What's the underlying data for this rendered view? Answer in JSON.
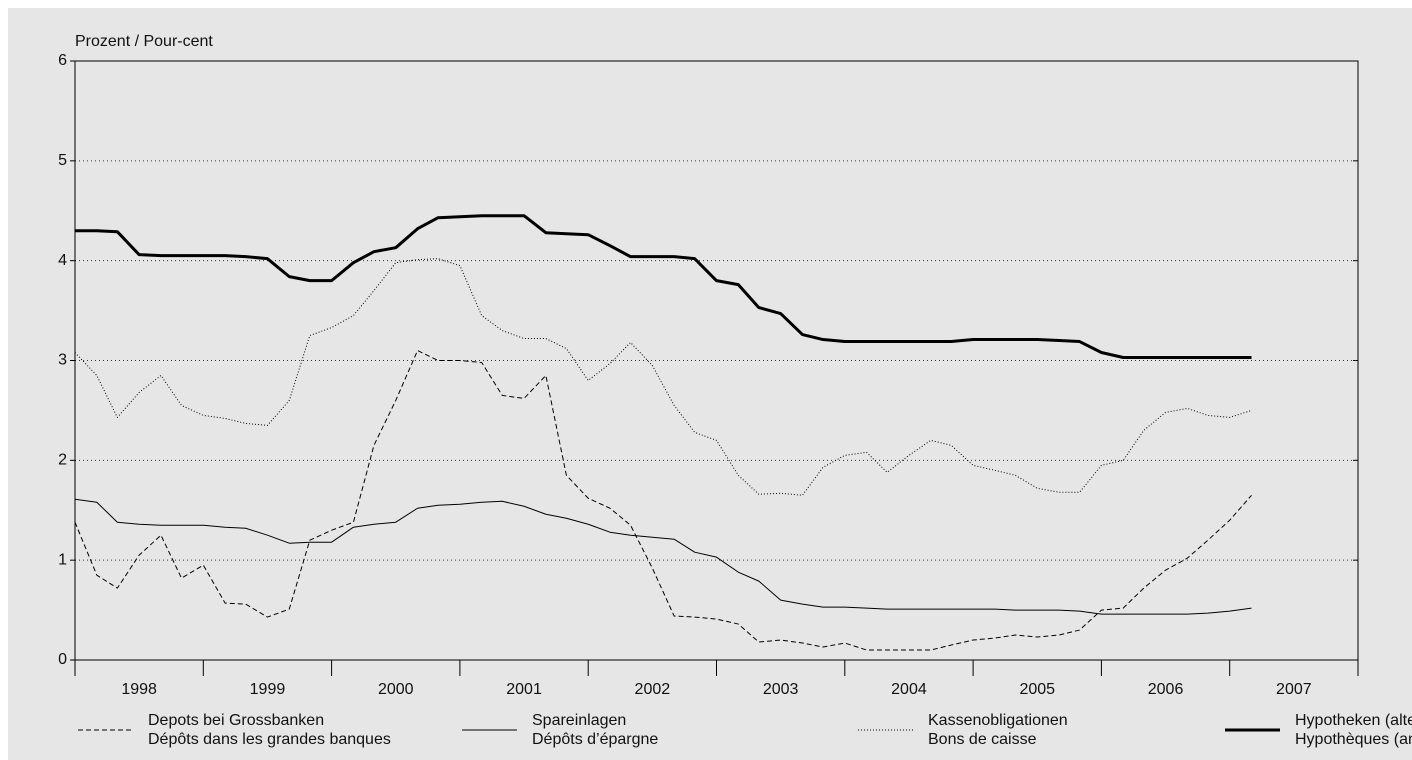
{
  "chart_data": {
    "type": "line",
    "ylabel": "Prozent / Pour-cent",
    "x": [
      1998,
      1998.17,
      1998.33,
      1998.5,
      1998.67,
      1998.83,
      1999,
      1999.17,
      1999.33,
      1999.5,
      1999.67,
      1999.83,
      2000,
      2000.17,
      2000.33,
      2000.5,
      2000.67,
      2000.83,
      2001,
      2001.17,
      2001.33,
      2001.5,
      2001.67,
      2001.83,
      2002,
      2002.17,
      2002.33,
      2002.5,
      2002.67,
      2002.83,
      2003,
      2003.17,
      2003.33,
      2003.5,
      2003.67,
      2003.83,
      2004,
      2004.17,
      2004.33,
      2004.5,
      2004.67,
      2004.83,
      2005,
      2005.17,
      2005.33,
      2005.5,
      2005.67,
      2005.83,
      2006,
      2006.17,
      2006.33,
      2006.5,
      2006.67,
      2006.83,
      2007,
      2007.17
    ],
    "series": [
      {
        "name": [
          "Depots bei Grossbanken",
          "Dépôts dans les grandes banques"
        ],
        "color": "#000000",
        "style": "dashed",
        "width": 1,
        "values": [
          1.38,
          0.85,
          0.72,
          1.05,
          1.25,
          0.82,
          0.95,
          0.57,
          0.56,
          0.43,
          0.51,
          1.2,
          1.3,
          1.38,
          2.15,
          2.6,
          3.1,
          3.0,
          3.0,
          2.98,
          2.65,
          2.62,
          2.85,
          1.85,
          1.62,
          1.52,
          1.35,
          0.92,
          0.44,
          0.43,
          0.41,
          0.36,
          0.18,
          0.2,
          0.17,
          0.13,
          0.17,
          0.1,
          0.1,
          0.1,
          0.1,
          0.15,
          0.2,
          0.22,
          0.25,
          0.23,
          0.25,
          0.3,
          0.5,
          0.52,
          0.72,
          0.9,
          1.02,
          1.2,
          1.4,
          1.65
        ]
      },
      {
        "name": [
          "Spareinlagen",
          "Dépôts d’épargne"
        ],
        "color": "#000000",
        "style": "solid",
        "width": 1,
        "values": [
          1.61,
          1.58,
          1.38,
          1.36,
          1.35,
          1.35,
          1.35,
          1.33,
          1.32,
          1.25,
          1.17,
          1.18,
          1.18,
          1.33,
          1.36,
          1.38,
          1.52,
          1.55,
          1.56,
          1.58,
          1.59,
          1.54,
          1.46,
          1.42,
          1.36,
          1.28,
          1.25,
          1.23,
          1.21,
          1.08,
          1.03,
          0.88,
          0.79,
          0.6,
          0.56,
          0.53,
          0.53,
          0.52,
          0.51,
          0.51,
          0.51,
          0.51,
          0.51,
          0.51,
          0.5,
          0.5,
          0.5,
          0.49,
          0.46,
          0.46,
          0.46,
          0.46,
          0.46,
          0.47,
          0.49,
          0.52
        ]
      },
      {
        "name": [
          "Kassenobligationen",
          "Bons de caisse"
        ],
        "color": "#000000",
        "style": "dotted",
        "width": 1,
        "values": [
          3.08,
          2.85,
          2.43,
          2.68,
          2.85,
          2.55,
          2.45,
          2.42,
          2.37,
          2.35,
          2.6,
          3.25,
          3.33,
          3.45,
          3.7,
          3.98,
          4.01,
          4.02,
          3.95,
          3.45,
          3.3,
          3.22,
          3.22,
          3.12,
          2.8,
          2.97,
          3.18,
          2.95,
          2.55,
          2.28,
          2.2,
          1.85,
          1.66,
          1.67,
          1.65,
          1.93,
          2.05,
          2.08,
          1.88,
          2.05,
          2.2,
          2.15,
          1.95,
          1.9,
          1.85,
          1.72,
          1.68,
          1.68,
          1.95,
          2.0,
          2.3,
          2.48,
          2.52,
          2.45,
          2.43,
          2.5
        ]
      },
      {
        "name": [
          "Hypotheken (alte)",
          "Hypothèques (anciennes)"
        ],
        "color": "#000000",
        "style": "solid",
        "width": 3,
        "values": [
          4.3,
          4.3,
          4.29,
          4.06,
          4.05,
          4.05,
          4.05,
          4.05,
          4.04,
          4.02,
          3.84,
          3.8,
          3.8,
          3.98,
          4.09,
          4.13,
          4.32,
          4.43,
          4.44,
          4.45,
          4.45,
          4.45,
          4.28,
          4.27,
          4.26,
          4.15,
          4.04,
          4.04,
          4.04,
          4.02,
          3.8,
          3.76,
          3.53,
          3.47,
          3.26,
          3.21,
          3.19,
          3.19,
          3.19,
          3.19,
          3.19,
          3.19,
          3.21,
          3.21,
          3.21,
          3.21,
          3.2,
          3.19,
          3.08,
          3.03,
          3.03,
          3.03,
          3.03,
          3.03,
          3.03,
          3.03
        ]
      }
    ],
    "xlim": [
      1998,
      2008
    ],
    "xticks": [
      {
        "value": 1998.5,
        "label": "1998"
      },
      {
        "value": 1999.5,
        "label": "1999"
      },
      {
        "value": 2000.5,
        "label": "2000"
      },
      {
        "value": 2001.5,
        "label": "2001"
      },
      {
        "value": 2002.5,
        "label": "2002"
      },
      {
        "value": 2003.5,
        "label": "2003"
      },
      {
        "value": 2004.5,
        "label": "2004"
      },
      {
        "value": 2005.5,
        "label": "2005"
      },
      {
        "value": 2006.5,
        "label": "2006"
      },
      {
        "value": 2007.5,
        "label": "2007"
      }
    ],
    "ylim": [
      0,
      6
    ],
    "yticks": [
      0,
      1,
      2,
      3,
      4,
      5,
      6
    ],
    "grid": true,
    "legend": "bottom"
  }
}
